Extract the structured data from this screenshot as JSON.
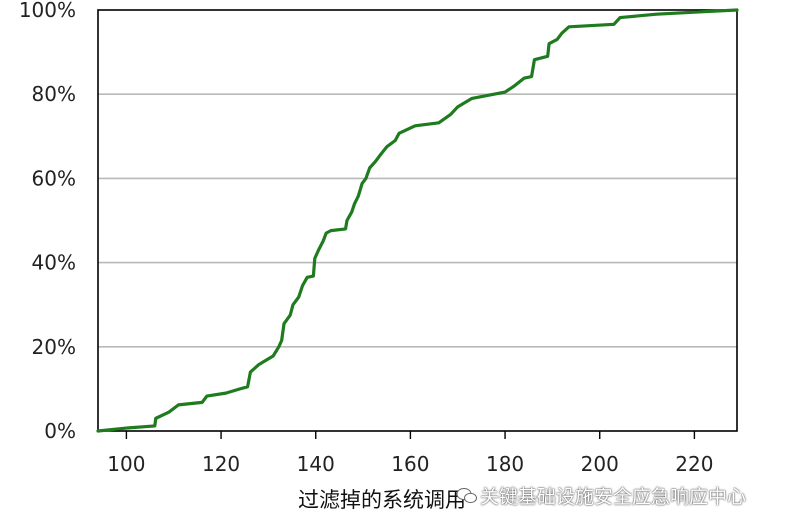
{
  "chart_data": {
    "type": "line",
    "title": "",
    "xlabel": "",
    "ylabel": "",
    "xlim": [
      94,
      229
    ],
    "ylim": [
      0,
      1
    ],
    "x_ticks": [
      "100",
      "120",
      "140",
      "160",
      "180",
      "200",
      "220"
    ],
    "y_ticks": [
      "0%",
      "20%",
      "40%",
      "60%",
      "80%",
      "100%"
    ],
    "grid": "horizontal",
    "colors": {
      "series": "#1e7b1e",
      "grid": "#b9b9b9",
      "axis": "#000000"
    },
    "series": [
      {
        "values": [
          [
            94,
            0.0
          ],
          [
            100,
            0.007
          ],
          [
            106,
            0.012
          ],
          [
            106.2,
            0.03
          ],
          [
            109,
            0.045
          ],
          [
            111,
            0.062
          ],
          [
            116,
            0.068
          ],
          [
            117,
            0.083
          ],
          [
            121,
            0.09
          ],
          [
            124,
            0.1
          ],
          [
            125.6,
            0.105
          ],
          [
            126.2,
            0.14
          ],
          [
            128,
            0.158
          ],
          [
            131,
            0.178
          ],
          [
            132.2,
            0.2
          ],
          [
            132.8,
            0.215
          ],
          [
            133.3,
            0.255
          ],
          [
            134.6,
            0.275
          ],
          [
            135.2,
            0.3
          ],
          [
            136.4,
            0.318
          ],
          [
            137.2,
            0.345
          ],
          [
            138.2,
            0.365
          ],
          [
            139.5,
            0.368
          ],
          [
            139.8,
            0.41
          ],
          [
            140.6,
            0.43
          ],
          [
            141.6,
            0.452
          ],
          [
            142.2,
            0.47
          ],
          [
            143.2,
            0.476
          ],
          [
            146.3,
            0.48
          ],
          [
            146.6,
            0.5
          ],
          [
            147.6,
            0.52
          ],
          [
            148.2,
            0.54
          ],
          [
            149,
            0.558
          ],
          [
            149.8,
            0.588
          ],
          [
            150.6,
            0.6
          ],
          [
            151.4,
            0.625
          ],
          [
            152.6,
            0.64
          ],
          [
            153.8,
            0.658
          ],
          [
            155,
            0.675
          ],
          [
            156.8,
            0.69
          ],
          [
            157.6,
            0.707
          ],
          [
            161,
            0.725
          ],
          [
            166,
            0.732
          ],
          [
            168.5,
            0.752
          ],
          [
            170,
            0.77
          ],
          [
            173,
            0.79
          ],
          [
            180,
            0.805
          ],
          [
            182,
            0.82
          ],
          [
            184,
            0.838
          ],
          [
            185.6,
            0.842
          ],
          [
            186.2,
            0.882
          ],
          [
            189,
            0.89
          ],
          [
            189.3,
            0.92
          ],
          [
            191,
            0.93
          ],
          [
            192,
            0.945
          ],
          [
            193.5,
            0.96
          ],
          [
            203,
            0.966
          ],
          [
            204.3,
            0.982
          ],
          [
            212,
            0.99
          ],
          [
            222,
            0.996
          ],
          [
            229,
            1.0
          ]
        ]
      }
    ]
  },
  "caption": "过滤掉的系统调用",
  "watermark": "关键基础设施安全应急响应中心"
}
